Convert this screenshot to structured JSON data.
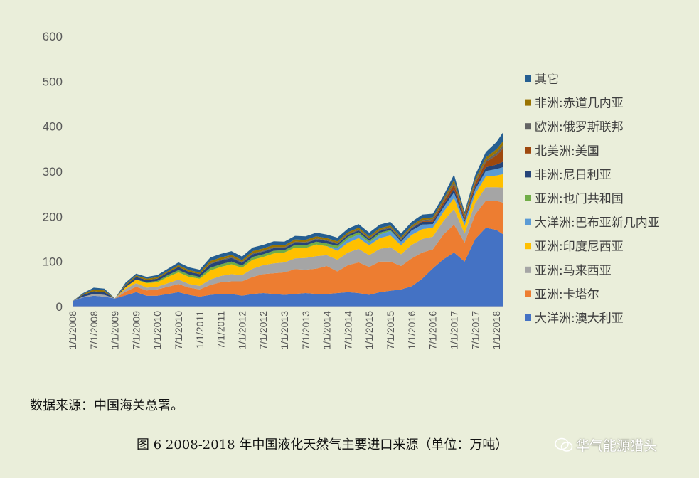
{
  "chart_data": {
    "type": "area",
    "stacked": true,
    "title": "",
    "xlabel": "",
    "ylabel": "",
    "ylim": [
      0,
      600
    ],
    "yticks": [
      0,
      100,
      200,
      300,
      400,
      500,
      600
    ],
    "xticks": [
      "1/1/2008",
      "7/1/2008",
      "1/1/2009",
      "7/1/2009",
      "1/1/2010",
      "7/1/2010",
      "1/1/2011",
      "7/1/2011",
      "1/1/2012",
      "7/1/2012",
      "1/1/2013",
      "7/1/2013",
      "1/1/2014",
      "7/1/2014",
      "1/1/2015",
      "7/1/2015",
      "1/1/2016",
      "7/1/2016",
      "1/1/2017",
      "7/1/2017",
      "1/1/2018"
    ],
    "grid": false,
    "legend_position": "right",
    "x": [
      "2008-01",
      "2008-04",
      "2008-07",
      "2008-10",
      "2009-01",
      "2009-04",
      "2009-07",
      "2009-10",
      "2010-01",
      "2010-04",
      "2010-07",
      "2010-10",
      "2011-01",
      "2011-04",
      "2011-07",
      "2011-10",
      "2012-01",
      "2012-04",
      "2012-07",
      "2012-10",
      "2013-01",
      "2013-04",
      "2013-07",
      "2013-10",
      "2014-01",
      "2014-04",
      "2014-07",
      "2014-10",
      "2015-01",
      "2015-04",
      "2015-07",
      "2015-10",
      "2016-01",
      "2016-04",
      "2016-07",
      "2016-10",
      "2017-01",
      "2017-04",
      "2017-07",
      "2017-10",
      "2018-01",
      "2018-03"
    ],
    "series": [
      {
        "name": "大洋洲:澳大利亚",
        "color": "#4472c4",
        "values": [
          12,
          20,
          24,
          22,
          18,
          25,
          32,
          24,
          24,
          28,
          32,
          26,
          22,
          26,
          28,
          28,
          24,
          28,
          30,
          28,
          26,
          28,
          30,
          28,
          28,
          30,
          32,
          30,
          26,
          32,
          35,
          38,
          45,
          62,
          85,
          105,
          120,
          100,
          150,
          175,
          170,
          160
        ]
      },
      {
        "name": "亚洲:卡塔尔",
        "color": "#ed7d31",
        "values": [
          0,
          0,
          0,
          0,
          0,
          8,
          12,
          12,
          14,
          16,
          18,
          16,
          16,
          22,
          26,
          28,
          32,
          38,
          42,
          46,
          50,
          55,
          52,
          56,
          62,
          48,
          60,
          68,
          62,
          68,
          65,
          52,
          62,
          58,
          42,
          55,
          62,
          42,
          55,
          60,
          65,
          70
        ]
      },
      {
        "name": "亚洲:马来西亚",
        "color": "#a5a5a5",
        "values": [
          0,
          2,
          4,
          4,
          0,
          6,
          8,
          6,
          6,
          8,
          10,
          8,
          8,
          12,
          14,
          16,
          14,
          18,
          20,
          22,
          22,
          24,
          26,
          28,
          24,
          26,
          28,
          30,
          26,
          28,
          32,
          26,
          30,
          30,
          28,
          30,
          35,
          20,
          25,
          30,
          30,
          34
        ]
      },
      {
        "name": "亚洲:印度尼西亚",
        "color": "#ffc000",
        "values": [
          0,
          0,
          0,
          0,
          0,
          4,
          8,
          10,
          10,
          14,
          16,
          16,
          16,
          20,
          20,
          22,
          16,
          20,
          18,
          22,
          22,
          24,
          22,
          26,
          20,
          20,
          22,
          24,
          22,
          24,
          26,
          20,
          22,
          22,
          20,
          20,
          24,
          18,
          20,
          24,
          26,
          30
        ]
      },
      {
        "name": "大洋洲:巴布亚新几内亚",
        "color": "#5b9bd5",
        "values": [
          0,
          0,
          0,
          0,
          0,
          0,
          0,
          0,
          0,
          0,
          0,
          0,
          0,
          0,
          0,
          0,
          0,
          0,
          0,
          0,
          0,
          0,
          0,
          0,
          0,
          6,
          8,
          8,
          6,
          8,
          10,
          8,
          10,
          10,
          8,
          10,
          12,
          8,
          10,
          12,
          14,
          16
        ]
      },
      {
        "name": "亚洲:也门共和国",
        "color": "#70ad47",
        "values": [
          0,
          0,
          0,
          0,
          0,
          0,
          0,
          2,
          3,
          4,
          5,
          5,
          4,
          6,
          6,
          6,
          5,
          6,
          6,
          6,
          5,
          6,
          6,
          6,
          6,
          5,
          5,
          5,
          4,
          4,
          2,
          0,
          0,
          0,
          0,
          0,
          0,
          0,
          0,
          0,
          0,
          0
        ]
      },
      {
        "name": "非洲:尼日利亚",
        "color": "#264478",
        "values": [
          0,
          4,
          6,
          6,
          0,
          4,
          6,
          5,
          5,
          6,
          7,
          6,
          6,
          8,
          8,
          8,
          6,
          6,
          6,
          6,
          5,
          5,
          5,
          5,
          6,
          4,
          4,
          4,
          4,
          4,
          4,
          4,
          5,
          6,
          5,
          6,
          8,
          4,
          6,
          8,
          10,
          12
        ]
      },
      {
        "name": "北美洲:美国",
        "color": "#9e480e",
        "values": [
          0,
          0,
          0,
          0,
          0,
          0,
          0,
          0,
          0,
          0,
          0,
          0,
          0,
          0,
          0,
          0,
          0,
          0,
          0,
          0,
          0,
          0,
          0,
          0,
          0,
          0,
          0,
          0,
          0,
          0,
          0,
          0,
          0,
          2,
          4,
          6,
          10,
          6,
          8,
          12,
          20,
          30
        ]
      },
      {
        "name": "欧洲:俄罗斯联邦",
        "color": "#636363",
        "values": [
          0,
          0,
          0,
          0,
          0,
          0,
          0,
          0,
          0,
          0,
          0,
          0,
          0,
          2,
          2,
          2,
          2,
          2,
          2,
          2,
          2,
          2,
          2,
          2,
          2,
          2,
          2,
          2,
          2,
          2,
          2,
          2,
          2,
          2,
          2,
          2,
          4,
          2,
          3,
          4,
          6,
          8
        ]
      },
      {
        "name": "非洲:赤道几内亚",
        "color": "#997300",
        "values": [
          0,
          2,
          4,
          4,
          0,
          2,
          3,
          3,
          3,
          3,
          4,
          4,
          4,
          5,
          5,
          5,
          4,
          5,
          5,
          5,
          4,
          5,
          5,
          5,
          4,
          4,
          4,
          4,
          4,
          4,
          4,
          4,
          4,
          4,
          4,
          4,
          6,
          4,
          5,
          6,
          8,
          8
        ]
      },
      {
        "name": "其它",
        "color": "#255e91",
        "values": [
          0,
          2,
          4,
          4,
          0,
          4,
          4,
          4,
          5,
          5,
          6,
          6,
          6,
          8,
          8,
          8,
          8,
          8,
          8,
          8,
          8,
          8,
          8,
          8,
          8,
          8,
          8,
          8,
          8,
          8,
          8,
          8,
          8,
          8,
          8,
          8,
          12,
          6,
          10,
          12,
          16,
          20
        ]
      }
    ]
  },
  "source_note": "数据来源：中国海关总署。",
  "caption": "图 6    2008-2018 年中国液化天然气主要进口来源（单位：万吨）",
  "watermark": "华气能源猎头"
}
